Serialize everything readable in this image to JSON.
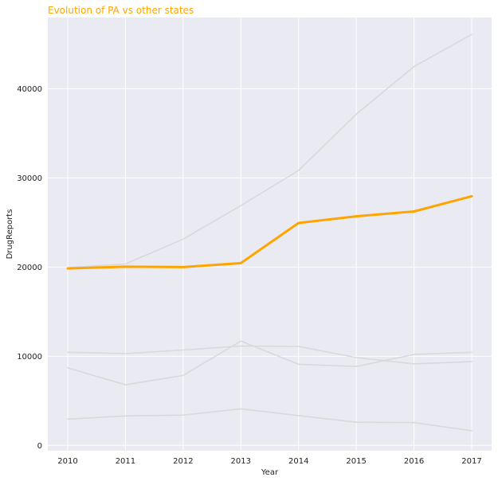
{
  "chart_data": {
    "type": "line",
    "title": "Evolution of PA vs other states",
    "xlabel": "Year",
    "ylabel": "DrugReports",
    "x": [
      2010,
      2011,
      2012,
      2013,
      2014,
      2015,
      2016,
      2017
    ],
    "ylim": [
      -600,
      48000
    ],
    "yticks": [
      0,
      10000,
      20000,
      30000,
      40000
    ],
    "grid": true,
    "legend": "none",
    "colors": {
      "highlight": "#ffa500",
      "background_series": "#d9d9d9",
      "plot_background": "#eaeaf2",
      "grid": "#ffffff",
      "title": "#ffa500"
    },
    "series": [
      {
        "values": [
          19950,
          20350,
          23150,
          26900,
          30850,
          37150,
          42500,
          46100
        ],
        "highlight": false
      },
      {
        "values": [
          10450,
          10300,
          10700,
          11150,
          11100,
          9850,
          9150,
          9400
        ],
        "highlight": false
      },
      {
        "values": [
          8700,
          6800,
          7850,
          11700,
          9100,
          8850,
          10200,
          10450
        ],
        "highlight": false
      },
      {
        "values": [
          2950,
          3300,
          3400,
          4100,
          3350,
          2600,
          2550,
          1650
        ],
        "highlight": false
      },
      {
        "values": [
          19850,
          20050,
          20000,
          20450,
          24950,
          25700,
          26250,
          27950
        ],
        "highlight": true
      }
    ]
  }
}
